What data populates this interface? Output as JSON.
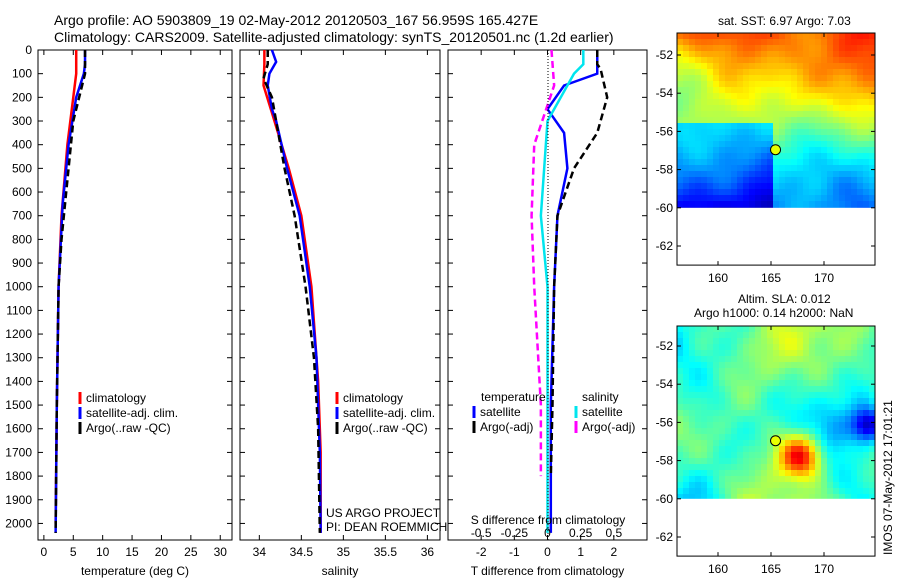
{
  "title_line1": "Argo profile: AO 5903809_19 02-May-2012 20120503_167 56.959S 165.427E",
  "title_line2": "Climatology: CARS2009. Satellite-adjusted climatology: synTS_20120501.nc (1.2d earlier)",
  "credit_line1": "US ARGO PROJECT",
  "credit_line2": "PI: DEAN ROEMMICH",
  "side_stamp": "IMOS 07-May-2012 17:01:21",
  "colors": {
    "clim": "#ff0000",
    "sat": "#0000ff",
    "argo": "#000000",
    "ssat": "#00e5ee",
    "sargo": "#ff00ff"
  },
  "depth_ticks": [
    0,
    100,
    200,
    300,
    400,
    500,
    600,
    700,
    800,
    900,
    1000,
    1100,
    1200,
    1300,
    1400,
    1500,
    1600,
    1700,
    1800,
    1900,
    2000
  ],
  "chart_data": [
    {
      "type": "line",
      "title": "",
      "xlabel": "temperature (deg C)",
      "ylabel": "depth",
      "xlim": [
        -1,
        32
      ],
      "ylim": [
        2070,
        0
      ],
      "xticks": [
        0,
        5,
        10,
        15,
        20,
        25,
        30
      ],
      "legend": [
        "climatology",
        "satellite-adj. clim.",
        "Argo(..raw -QC)"
      ],
      "series": [
        {
          "name": "climatology",
          "depth": [
            0,
            100,
            200,
            400,
            700,
            1000,
            1500,
            2000
          ],
          "values": [
            5.5,
            5.5,
            5,
            4,
            3,
            2.5,
            2.2,
            2
          ]
        },
        {
          "name": "satellite-adj. clim.",
          "depth": [
            0,
            60,
            100,
            200,
            400,
            650,
            1000,
            1500,
            2040
          ],
          "values": [
            7,
            7,
            6.8,
            5.5,
            4.2,
            3.2,
            2.5,
            2.2,
            2
          ]
        },
        {
          "name": "Argo(..raw -QC)",
          "depth": [
            0,
            60,
            100,
            200,
            300,
            500,
            800,
            1000,
            1500,
            2040
          ],
          "values": [
            7,
            7,
            7,
            6,
            5,
            4.2,
            3,
            2.5,
            2.2,
            2
          ]
        }
      ]
    },
    {
      "type": "line",
      "xlabel": "salinity",
      "xlim": [
        33.77,
        36.15
      ],
      "ylim": [
        2070,
        0
      ],
      "xticks": [
        "34",
        "34.5",
        "35",
        "35.5",
        "36"
      ],
      "legend": [
        "climatology",
        "satellite-adj. clim.",
        "Argo(..raw -QC)"
      ],
      "series": [
        {
          "name": "climatology",
          "depth": [
            0,
            60,
            150,
            300,
            500,
            700,
            1000,
            1400,
            1700,
            2040
          ],
          "values": [
            34.06,
            34.06,
            34.05,
            34.18,
            34.35,
            34.5,
            34.62,
            34.7,
            34.73,
            34.73
          ]
        },
        {
          "name": "satellite-adj. clim.",
          "depth": [
            0,
            50,
            100,
            150,
            250,
            300,
            500,
            700,
            1000,
            1300,
            1700,
            2040
          ],
          "values": [
            34.15,
            34.2,
            34.12,
            34.1,
            34.15,
            34.2,
            34.33,
            34.48,
            34.6,
            34.68,
            34.72,
            34.73
          ]
        },
        {
          "name": "Argo(..raw -QC)",
          "depth": [
            0,
            60,
            120,
            200,
            300,
            500,
            700,
            1000,
            1300,
            1600,
            2040
          ],
          "values": [
            34.1,
            34.1,
            34.05,
            34.15,
            34.2,
            34.3,
            34.42,
            34.55,
            34.65,
            34.7,
            34.72
          ]
        }
      ]
    },
    {
      "type": "line",
      "xlabel": "T difference from climatology",
      "x2label": "S difference from climatology",
      "xlim": [
        -3,
        3
      ],
      "x2lim": [
        -0.75,
        0.75
      ],
      "ylim": [
        2070,
        0
      ],
      "xticks": [
        "-2",
        "-1",
        "0",
        "1",
        "2"
      ],
      "x2ticks": [
        "-0.5",
        "-0.25",
        "0",
        "0.25",
        "0.5"
      ],
      "legend_headers": [
        "temperature",
        "salinity"
      ],
      "legend": [
        "satellite",
        "Argo(-adj)",
        "satellite",
        "Argo(-adj)"
      ],
      "series": [
        {
          "name": "T satellite",
          "axis": "T",
          "depth": [
            0,
            100,
            150,
            250,
            350,
            500,
            700,
            1000,
            1500,
            2040
          ],
          "values": [
            1.5,
            1.5,
            0.5,
            0,
            0.5,
            0.6,
            0.3,
            0.2,
            0.1,
            0.1
          ]
        },
        {
          "name": "T Argo(-adj)",
          "axis": "T",
          "depth": [
            0,
            60,
            80,
            200,
            350,
            500,
            700,
            1000,
            1500,
            1800
          ],
          "values": [
            1.5,
            1.5,
            1.6,
            1.8,
            1.5,
            0.8,
            0.3,
            0.2,
            0.15,
            0.1
          ]
        },
        {
          "name": "S satellite",
          "axis": "S",
          "depth": [
            0,
            60,
            100,
            300,
            700,
            1000,
            1500,
            2040
          ],
          "values": [
            0.27,
            0.27,
            0.2,
            0,
            -0.05,
            0,
            0,
            0
          ]
        },
        {
          "name": "S Argo(-adj)",
          "axis": "S",
          "depth": [
            0,
            150,
            400,
            700,
            1000,
            1500,
            1800
          ],
          "values": [
            0.03,
            0.05,
            -0.1,
            -0.12,
            -0.1,
            -0.05,
            -0.05
          ]
        }
      ]
    },
    {
      "type": "heatmap",
      "title": "sat. SST: 6.97 Argo: 7.03",
      "xticks": [
        "160",
        "165",
        "170"
      ],
      "yticks": [
        "-52",
        "-54",
        "-56",
        "-58",
        "-60",
        "-62"
      ],
      "float_position": [
        165.427,
        -56.959
      ]
    },
    {
      "type": "heatmap",
      "title_line1": "Altim. SLA: 0.012",
      "title_line2": "Argo h1000: 0.14 h2000: NaN",
      "xticks": [
        "160",
        "165",
        "170"
      ],
      "yticks": [
        "-52",
        "-54",
        "-56",
        "-58",
        "-60",
        "-62"
      ],
      "float_position": [
        165.427,
        -56.959
      ]
    }
  ]
}
